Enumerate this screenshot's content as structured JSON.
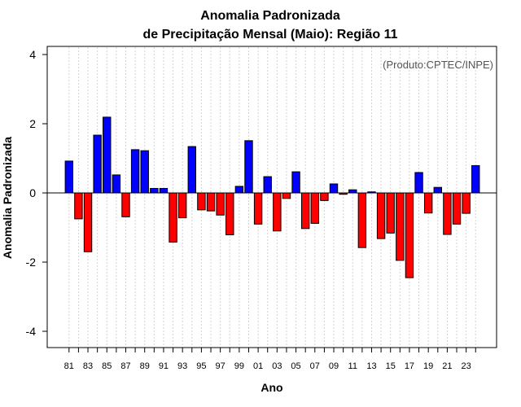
{
  "chart_data": {
    "type": "bar",
    "title_line1": "Anomalia Padronizada",
    "title_line2": "de Precipitação Mensal (Maio): Região 11",
    "xlabel": "Ano",
    "ylabel": "Anomalia Padronizada",
    "credit": "(Produto:CPTEC/INPE)",
    "ylim": [
      -4.4,
      4.4
    ],
    "yticks": [
      "4",
      "2",
      "0",
      "-2",
      "-4"
    ],
    "ytick_values": [
      4,
      2,
      0,
      -2,
      -4
    ],
    "xtick_labels": [
      "81",
      "83",
      "85",
      "87",
      "89",
      "91",
      "93",
      "95",
      "97",
      "99",
      "01",
      "03",
      "05",
      "07",
      "09",
      "11",
      "13",
      "15",
      "17",
      "19",
      "21",
      "23"
    ],
    "categories": [
      "81",
      "82",
      "83",
      "84",
      "85",
      "86",
      "87",
      "88",
      "89",
      "90",
      "91",
      "92",
      "93",
      "94",
      "95",
      "96",
      "97",
      "98",
      "99",
      "00",
      "01",
      "02",
      "03",
      "04",
      "05",
      "06",
      "07",
      "08",
      "09",
      "10",
      "11",
      "12",
      "13",
      "14",
      "15",
      "16",
      "17",
      "18",
      "19",
      "20",
      "21",
      "22",
      "23",
      "24"
    ],
    "values": [
      0.92,
      -0.75,
      -1.7,
      1.67,
      2.19,
      0.52,
      -0.69,
      1.25,
      1.22,
      0.13,
      0.13,
      -1.42,
      -0.72,
      1.34,
      -0.49,
      -0.52,
      -0.64,
      -1.21,
      0.19,
      1.51,
      -0.9,
      0.47,
      -1.1,
      -0.16,
      0.61,
      -1.03,
      -0.88,
      -0.22,
      0.26,
      -0.04,
      0.09,
      -1.58,
      0.03,
      -1.32,
      -1.16,
      -1.95,
      -2.45,
      0.59,
      -0.58,
      0.16,
      -1.2,
      -0.9,
      -0.59,
      0.79
    ],
    "colors": {
      "positive": "#0000ff",
      "negative": "#ff0000"
    }
  }
}
